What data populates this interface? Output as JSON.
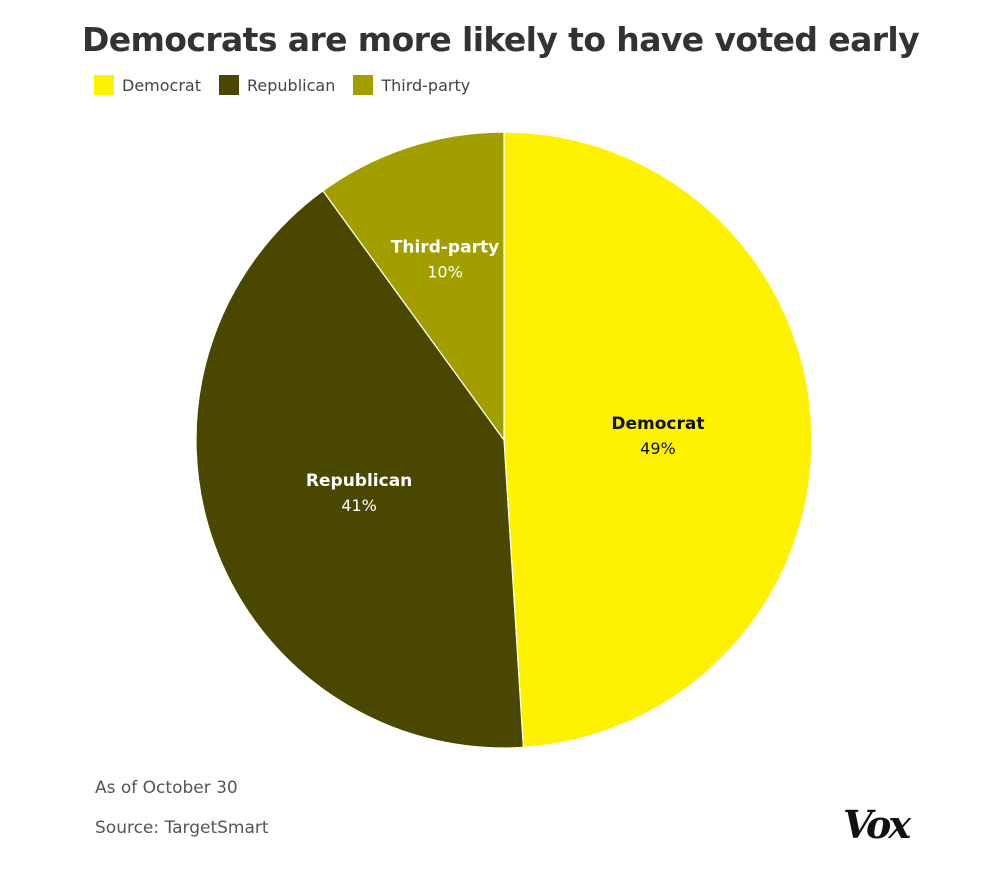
{
  "chart_data": {
    "type": "pie",
    "title": "Democrats are more likely to have voted early",
    "categories": [
      "Democrat",
      "Republican",
      "Third-party"
    ],
    "values": [
      49,
      41,
      10
    ],
    "value_labels": [
      "49%",
      "41%",
      "10%"
    ],
    "colors": [
      "#FFF200",
      "#4A4700",
      "#A29E00"
    ],
    "label_colors": [
      "#111111",
      "#FFFFFF",
      "#FFFFFF"
    ],
    "legend": {
      "placement": "top-left",
      "items": [
        "Democrat",
        "Republican",
        "Third-party"
      ]
    },
    "start_angle": "12 o'clock",
    "direction": "clockwise"
  },
  "notes": {
    "as_of": "As of October 30",
    "source": "Source: TargetSmart"
  },
  "brand": {
    "logo_text": "Vox"
  }
}
